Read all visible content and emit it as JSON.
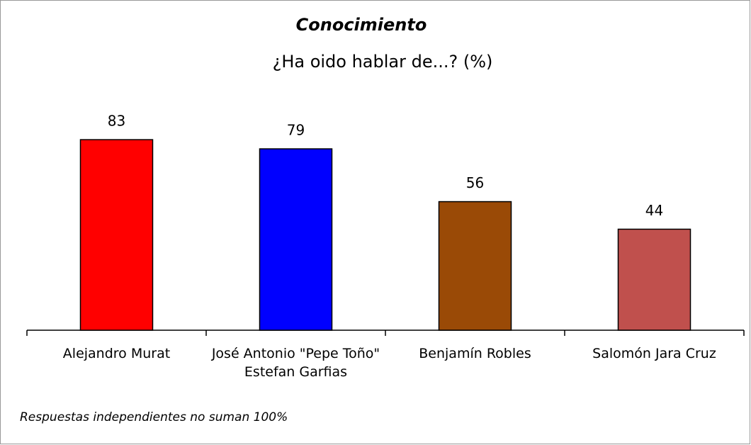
{
  "chart_data": {
    "type": "bar",
    "title": "Conocimiento",
    "subtitle": "¿Ha oido hablar de...? (%)",
    "categories": [
      "Alejandro Murat",
      "José Antonio \"Pepe Toño\" Estefan Garfias",
      "Benjamín Robles",
      "Salomón Jara Cruz"
    ],
    "values": [
      83,
      79,
      56,
      44
    ],
    "colors": [
      "#ff0000",
      "#0000ff",
      "#9a4a06",
      "#c0504d"
    ],
    "ylim": [
      0,
      100
    ],
    "annotation": "Respuestas independientes no suman 100%"
  }
}
